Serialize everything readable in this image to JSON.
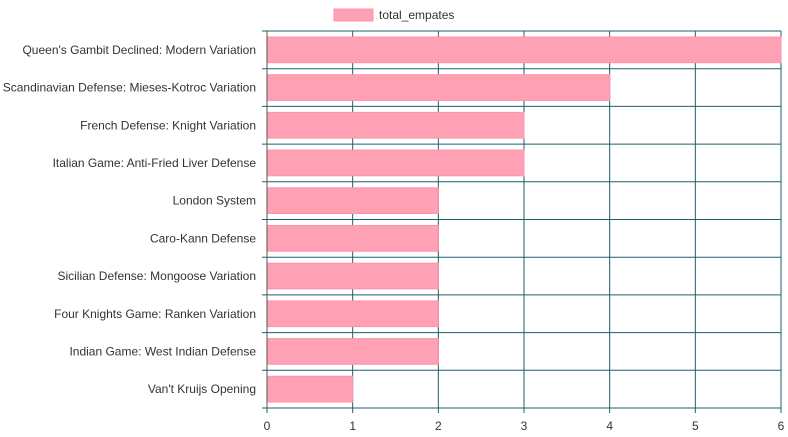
{
  "chart_data": {
    "type": "bar",
    "orientation": "horizontal",
    "categories": [
      "Queen's Gambit Declined: Modern Variation",
      "Scandinavian Defense: Mieses-Kotroc Variation",
      "French Defense: Knight Variation",
      "Italian Game: Anti-Fried Liver Defense",
      "London System",
      "Caro-Kann Defense",
      "Sicilian Defense: Mongoose Variation",
      "Four Knights Game: Ranken Variation",
      "Indian Game: West Indian Defense",
      "Van't Kruijs Opening"
    ],
    "series": [
      {
        "name": "total_empates",
        "values": [
          6,
          4,
          3,
          3,
          2,
          2,
          2,
          2,
          2,
          1
        ]
      }
    ],
    "x_ticks": [
      "0",
      "1",
      "2",
      "3",
      "4",
      "5",
      "6"
    ],
    "xlim": [
      0,
      6
    ],
    "grid": true,
    "legend_position": "top-center",
    "colors": {
      "bar_fill": "#ffa1b5",
      "bar_stroke": "#ff92aa",
      "grid": "#1f5f6a",
      "axis": "#555555"
    }
  }
}
